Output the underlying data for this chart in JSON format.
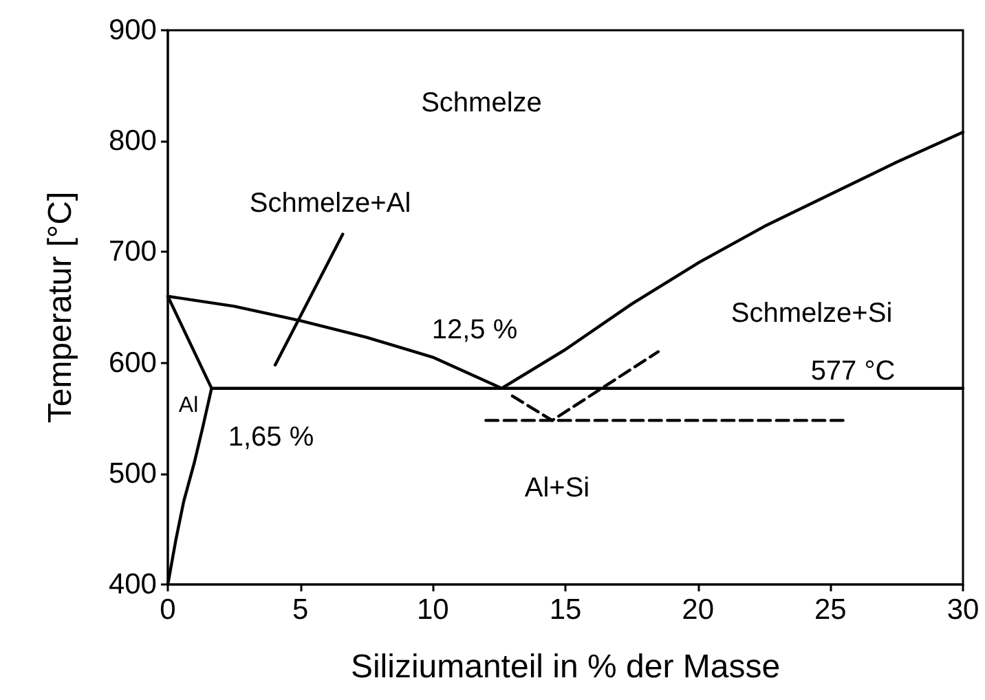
{
  "chart_data": {
    "type": "line",
    "xlabel": "Siliziumanteil in % der Masse",
    "ylabel": "Temperatur [°C]",
    "xlim": [
      0,
      30
    ],
    "xticks": [
      0,
      5,
      10,
      15,
      20,
      25,
      30
    ],
    "ylim": [
      400,
      900
    ],
    "yticks": [
      400,
      500,
      600,
      700,
      800,
      900
    ],
    "grid": false,
    "marker": "none",
    "line_style": "solid",
    "series": [
      {
        "color": "#000000",
        "x": [
          0,
          2.5,
          5,
          7.5,
          10,
          12.6
        ],
        "values": [
          660,
          651,
          638,
          623,
          605,
          577
        ]
      },
      {
        "color": "#000000",
        "x": [
          12.6,
          15,
          17.5,
          20,
          22.5,
          25,
          27.5,
          30
        ],
        "values": [
          577,
          612,
          653,
          690,
          723,
          752,
          781,
          808
        ]
      },
      {
        "color": "#000000",
        "x": [
          0,
          1.65
        ],
        "values": [
          660,
          577
        ]
      },
      {
        "color": "#000000",
        "x": [
          1.65,
          30
        ],
        "values": [
          577,
          577
        ]
      },
      {
        "color": "#000000",
        "x": [
          0,
          0.3,
          0.6,
          1.0,
          1.3,
          1.65
        ],
        "values": [
          400,
          440,
          475,
          510,
          540,
          577
        ]
      },
      {
        "color": "#000000",
        "x": [
          4.05,
          6.6
        ],
        "values": [
          598,
          716
        ]
      },
      {
        "color": "#000000",
        "line_style": "dashed",
        "x": [
          12,
          25.5
        ],
        "values": [
          548,
          548
        ]
      },
      {
        "color": "#000000",
        "line_style": "dashed",
        "x": [
          13,
          14.5,
          18.5
        ],
        "values": [
          570,
          548,
          610
        ]
      }
    ],
    "annotations": [
      "Schmelze",
      "Schmelze+Al",
      "12,5 %",
      "Schmelze+Si",
      "577 °C",
      "Al",
      "1,65 %",
      "Al+Si"
    ]
  }
}
